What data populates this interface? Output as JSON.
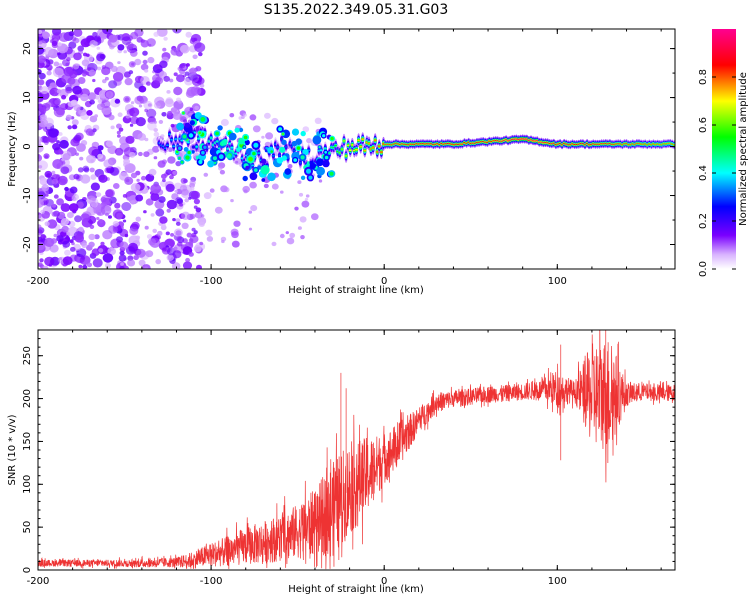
{
  "title": "S135.2022.349.05.31.G03",
  "chart_data": [
    {
      "type": "heatmap",
      "xlabel": "Height of straight line (km)",
      "ylabel": "Frequency (Hz)",
      "xlim": [
        -200,
        168
      ],
      "ylim": [
        -25,
        24
      ],
      "x_ticks": [
        -200,
        -100,
        0,
        100
      ],
      "y_ticks": [
        -20,
        -10,
        0,
        10,
        20
      ],
      "colorbar": {
        "label": "Normalized spectral amplitude",
        "range": [
          0,
          1
        ],
        "ticks": [
          0.0,
          0.2,
          0.4,
          0.6,
          0.8
        ],
        "colors": [
          "#ffffff",
          "#d9b3ff",
          "#7a00ff",
          "#0000ff",
          "#00ffff",
          "#00ff00",
          "#ffff00",
          "#ff0000",
          "#ff00a0"
        ]
      },
      "ridge": {
        "x": [
          -130,
          -115,
          -100,
          -85,
          -70,
          -60,
          -50,
          -40,
          -30,
          -20,
          -10,
          0,
          20,
          40,
          60,
          80,
          90,
          100,
          120,
          140,
          168
        ],
        "freq_hz": [
          0,
          2,
          1,
          -1,
          -3,
          0,
          -2,
          -2,
          -1,
          0,
          0,
          0.5,
          0.5,
          0.5,
          1,
          1.5,
          1,
          0.5,
          0.5,
          0.5,
          0.5
        ],
        "amplitude": [
          0.3,
          0.4,
          0.45,
          0.4,
          0.35,
          0.3,
          0.3,
          0.35,
          0.5,
          0.7,
          0.75,
          0.8,
          0.85,
          0.85,
          0.85,
          0.95,
          0.9,
          0.85,
          0.85,
          0.8,
          0.75
        ]
      }
    },
    {
      "type": "line",
      "xlabel": "Height of straight line (km)",
      "ylabel": "SNR (10 * v/v)",
      "xlim": [
        -200,
        168
      ],
      "ylim": [
        0,
        280
      ],
      "x_ticks": [
        -200,
        -100,
        0,
        100
      ],
      "y_ticks": [
        0,
        50,
        100,
        150,
        200,
        250
      ],
      "color": "#ee3333",
      "series": [
        {
          "x": [
            -200,
            -180,
            -160,
            -140,
            -120,
            -110,
            -100,
            -90,
            -80,
            -70,
            -60,
            -50,
            -40,
            -30,
            -20,
            -10,
            0,
            10,
            20,
            30,
            40,
            50,
            60,
            70,
            80,
            90,
            100,
            110,
            120,
            130,
            140,
            150,
            160,
            168
          ],
          "values": [
            8,
            8,
            8,
            8,
            9,
            12,
            18,
            22,
            28,
            32,
            38,
            45,
            55,
            70,
            95,
            110,
            130,
            150,
            175,
            195,
            200,
            202,
            205,
            206,
            208,
            210,
            212,
            208,
            205,
            205,
            205,
            208,
            206,
            207
          ],
          "spread": [
            4,
            4,
            4,
            5,
            6,
            10,
            14,
            18,
            22,
            25,
            28,
            32,
            40,
            55,
            55,
            45,
            30,
            25,
            15,
            12,
            10,
            10,
            10,
            10,
            10,
            12,
            22,
            12,
            60,
            70,
            14,
            10,
            10,
            10
          ]
        }
      ],
      "spikes": [
        {
          "x": -25,
          "y": 230
        },
        {
          "x": -22,
          "y": 212
        },
        {
          "x": 102,
          "y": 263
        },
        {
          "x": 102,
          "y": 128
        },
        {
          "x": 128,
          "y": 282
        },
        {
          "x": 128,
          "y": 132
        }
      ]
    }
  ]
}
